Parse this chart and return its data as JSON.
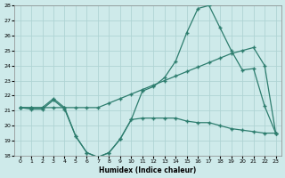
{
  "xlabel": "Humidex (Indice chaleur)",
  "bg_color": "#ceeaea",
  "line_color": "#2d7d6e",
  "grid_color": "#afd4d4",
  "xlim": [
    -0.5,
    23.5
  ],
  "ylim": [
    18,
    28
  ],
  "yticks": [
    18,
    19,
    20,
    21,
    22,
    23,
    24,
    25,
    26,
    27,
    28
  ],
  "xticks": [
    0,
    1,
    2,
    3,
    4,
    5,
    6,
    7,
    8,
    9,
    10,
    11,
    12,
    13,
    14,
    15,
    16,
    17,
    18,
    19,
    20,
    21,
    22,
    23
  ],
  "line1_x": [
    0,
    1,
    2,
    3,
    4,
    5,
    6,
    7,
    8,
    9,
    10,
    11,
    12,
    13,
    14,
    15,
    16,
    17,
    18,
    19,
    20,
    21,
    22,
    23
  ],
  "line1_y": [
    21.2,
    21.1,
    21.1,
    21.7,
    21.1,
    19.3,
    18.2,
    17.9,
    18.2,
    19.1,
    20.4,
    20.5,
    20.5,
    20.5,
    20.5,
    20.3,
    20.2,
    20.2,
    20.0,
    19.8,
    19.7,
    19.6,
    19.5,
    19.5
  ],
  "line2_x": [
    0,
    1,
    2,
    3,
    4,
    5,
    6,
    7,
    8,
    9,
    10,
    11,
    12,
    13,
    14,
    15,
    16,
    17,
    18,
    19,
    20,
    21,
    22,
    23
  ],
  "line2_y": [
    21.2,
    21.2,
    21.2,
    21.2,
    21.2,
    21.2,
    21.2,
    21.2,
    21.5,
    21.8,
    22.1,
    22.4,
    22.7,
    23.0,
    23.3,
    23.6,
    23.9,
    24.2,
    24.5,
    24.8,
    25.0,
    25.2,
    24.0,
    19.5
  ],
  "line3_x": [
    0,
    1,
    2,
    3,
    4,
    5,
    6,
    7,
    8,
    9,
    10,
    11,
    12,
    13,
    14,
    15,
    16,
    17,
    18,
    19,
    20,
    21,
    22,
    23
  ],
  "line3_y": [
    21.2,
    21.2,
    21.2,
    21.8,
    21.2,
    19.3,
    18.2,
    17.9,
    18.2,
    19.1,
    20.4,
    22.3,
    22.6,
    23.2,
    24.3,
    26.2,
    27.8,
    28.0,
    26.5,
    25.0,
    23.7,
    23.8,
    21.3,
    19.5
  ]
}
